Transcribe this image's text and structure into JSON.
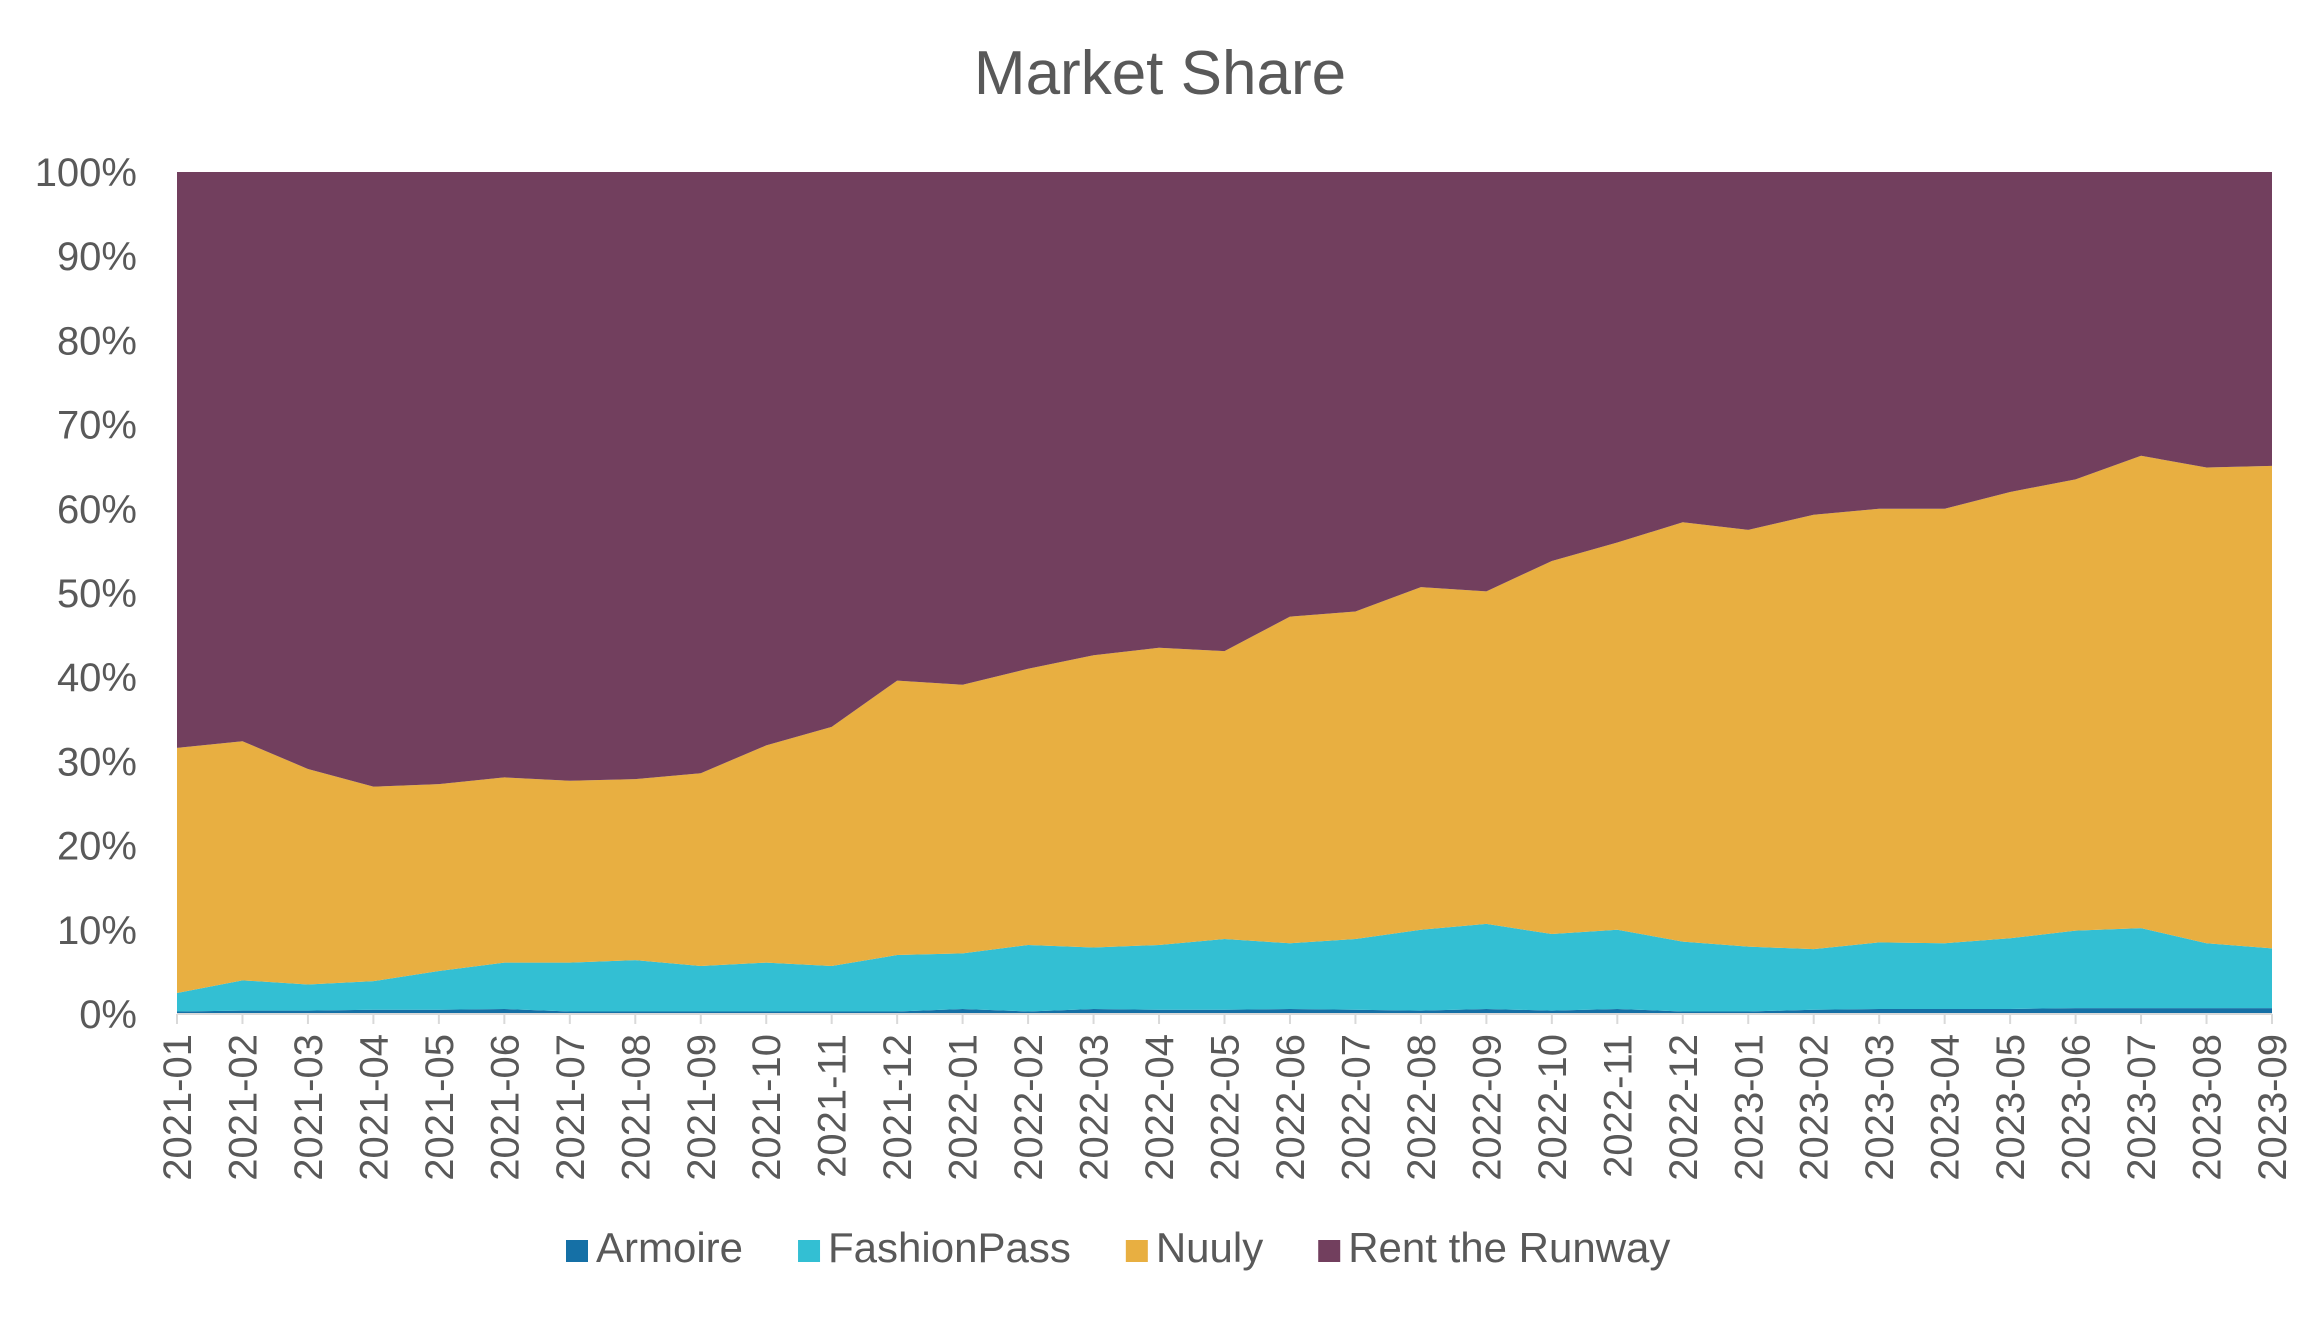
{
  "chart_data": {
    "type": "area",
    "stacked": "percent",
    "title": "Market Share",
    "xlabel": "",
    "ylabel": "",
    "ylim": [
      0,
      100
    ],
    "y_ticks": [
      "0%",
      "10%",
      "20%",
      "30%",
      "40%",
      "50%",
      "60%",
      "70%",
      "80%",
      "90%",
      "100%"
    ],
    "grid": false,
    "legend_position": "bottom",
    "x": [
      "2021-01",
      "2021-02",
      "2021-03",
      "2021-04",
      "2021-05",
      "2021-06",
      "2021-07",
      "2021-08",
      "2021-09",
      "2021-10",
      "2021-11",
      "2021-12",
      "2022-01",
      "2022-02",
      "2022-03",
      "2022-04",
      "2022-05",
      "2022-06",
      "2022-07",
      "2022-08",
      "2022-09",
      "2022-10",
      "2022-11",
      "2022-12",
      "2023-01",
      "2023-02",
      "2023-03",
      "2023-04",
      "2023-05",
      "2023-06",
      "2023-07",
      "2023-08",
      "2023-09"
    ],
    "series": [
      {
        "name": "Armoire",
        "color": "#1570a6",
        "values": [
          0.3,
          0.4,
          0.4,
          0.5,
          0.5,
          0.6,
          0.3,
          0.3,
          0.3,
          0.3,
          0.3,
          0.3,
          0.6,
          0.3,
          0.6,
          0.5,
          0.5,
          0.6,
          0.5,
          0.4,
          0.6,
          0.4,
          0.6,
          0.3,
          0.3,
          0.5,
          0.6,
          0.6,
          0.6,
          0.7,
          0.7,
          0.7,
          0.7
        ]
      },
      {
        "name": "FashionPass",
        "color": "#33bfd3",
        "values": [
          2.2,
          3.6,
          3.1,
          3.4,
          4.6,
          5.5,
          5.8,
          6.1,
          5.4,
          5.8,
          5.4,
          6.7,
          6.6,
          7.9,
          7.3,
          7.7,
          8.4,
          7.8,
          8.4,
          9.6,
          10.1,
          9.1,
          9.4,
          8.3,
          7.7,
          7.2,
          7.9,
          7.8,
          8.4,
          9.2,
          9.5,
          7.7,
          7.1
        ]
      },
      {
        "name": "Nuuly",
        "color": "#e8af41",
        "values": [
          29.1,
          28.4,
          25.6,
          23.1,
          22.2,
          22.0,
          21.6,
          21.5,
          22.9,
          25.8,
          28.4,
          32.6,
          31.9,
          32.8,
          34.7,
          35.3,
          34.2,
          38.8,
          38.9,
          40.7,
          39.5,
          44.3,
          46.0,
          49.8,
          49.5,
          51.6,
          51.5,
          51.6,
          53.0,
          53.6,
          56.1,
          56.5,
          57.3
        ]
      },
      {
        "name": "Rent the Runway",
        "color": "#723f5e",
        "values": [
          68.4,
          67.6,
          70.9,
          73.0,
          72.7,
          71.9,
          72.3,
          72.1,
          71.4,
          68.1,
          65.9,
          60.4,
          60.9,
          59.0,
          57.4,
          56.5,
          56.9,
          52.8,
          52.2,
          49.3,
          49.8,
          46.2,
          44.0,
          41.6,
          42.5,
          40.7,
          40.0,
          40.0,
          38.0,
          36.5,
          33.7,
          35.1,
          34.9
        ]
      }
    ]
  }
}
